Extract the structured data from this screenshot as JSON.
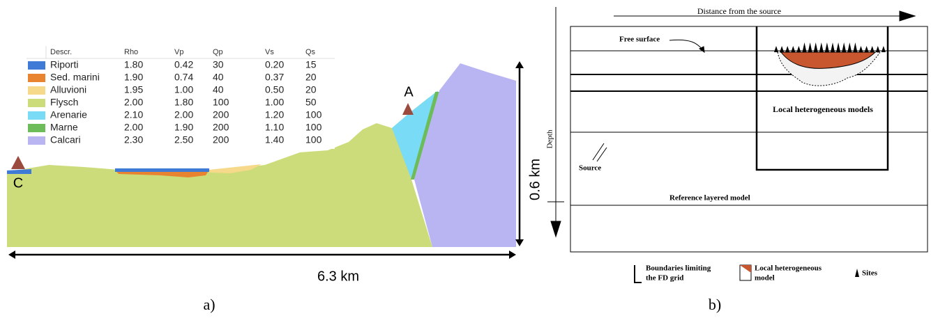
{
  "panel_a": {
    "table": {
      "header": [
        "Descr.",
        "Rho",
        "Vp",
        "Qp",
        "Vs",
        "Qs"
      ],
      "rows": [
        [
          "Riporti",
          "1.80",
          "0.42",
          "30",
          "0.20",
          "15"
        ],
        [
          "Sed. marini",
          "1.90",
          "0.74",
          "40",
          "0.37",
          "20"
        ],
        [
          "Alluvioni",
          "1.95",
          "1.00",
          "40",
          "0.50",
          "20"
        ],
        [
          "Flysch",
          "2.00",
          "1.80",
          "100",
          "1.00",
          "50"
        ],
        [
          "Arenarie",
          "2.10",
          "2.00",
          "200",
          "1.20",
          "100"
        ],
        [
          "Marne",
          "2.00",
          "1.90",
          "200",
          "1.10",
          "100"
        ],
        [
          "Calcari",
          "2.30",
          "2.50",
          "200",
          "1.40",
          "100"
        ]
      ]
    },
    "site_a": "A",
    "site_c": "C",
    "height_label": "0.6 km",
    "width_label": "6.3 km",
    "caption": "a)"
  },
  "panel_b": {
    "distance_label": "Distance from the source",
    "depth_label": "Depth",
    "free_surface_label": "Free surface",
    "local_models_label": "Local heterogeneous models",
    "source_label": "Source",
    "reference_label": "Reference layered model",
    "legend": [
      [
        "Boundaries limiting",
        "the FD grid"
      ],
      [
        "Local heterogeneous",
        "model"
      ],
      [
        "Sites"
      ]
    ],
    "caption": "b)"
  }
}
